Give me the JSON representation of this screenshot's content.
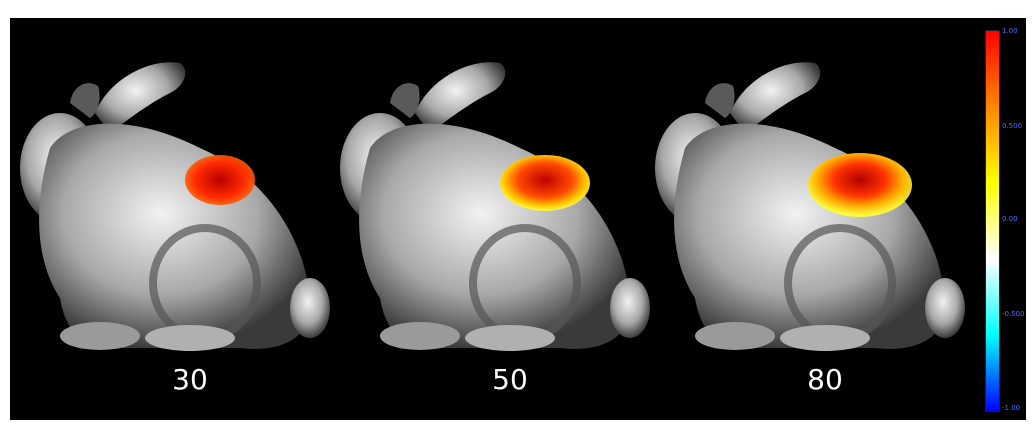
{
  "panels": [
    {
      "label": "30",
      "spot_intensity": 30
    },
    {
      "label": "50",
      "spot_intensity": 50
    },
    {
      "label": "80",
      "spot_intensity": 80
    }
  ],
  "colorbar": {
    "ticks": [
      "1.00",
      "0.500",
      "0.00",
      "-0.500",
      "-1.00"
    ],
    "colors": [
      "#ff0000",
      "#ff8800",
      "#ffff00",
      "#ffffff",
      "#00ffff",
      "#0000ff"
    ]
  }
}
